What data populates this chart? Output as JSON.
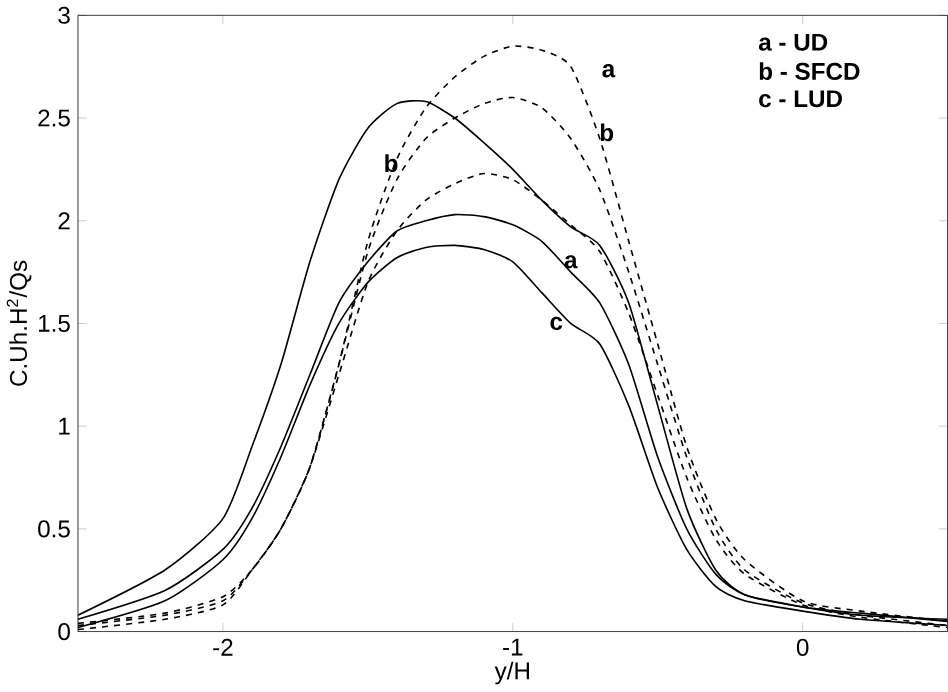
{
  "chart_data": {
    "type": "line",
    "xlabel": "y/H",
    "ylabel": "C.Uh.H$^{2}$/Qs",
    "xlim": [
      -2.5,
      0.5
    ],
    "ylim": [
      0,
      3
    ],
    "xticks": [
      -2,
      -1,
      0
    ],
    "yticks": [
      0,
      0.5,
      1,
      1.5,
      2,
      2.5,
      3
    ],
    "x": [
      -2.5,
      -2.2,
      -2.0,
      -1.9,
      -1.8,
      -1.7,
      -1.6,
      -1.5,
      -1.4,
      -1.3,
      -1.2,
      -1.1,
      -1.0,
      -0.9,
      -0.8,
      -0.7,
      -0.6,
      -0.5,
      -0.4,
      -0.3,
      -0.2,
      0.0,
      0.2,
      0.5
    ],
    "series": [
      {
        "color": "#000000",
        "line_style": "solid",
        "values": [
          0.08,
          0.3,
          0.55,
          0.9,
          1.3,
          1.8,
          2.2,
          2.45,
          2.57,
          2.58,
          2.5,
          2.38,
          2.25,
          2.1,
          1.97,
          1.88,
          1.6,
          1.1,
          0.6,
          0.3,
          0.18,
          0.12,
          0.09,
          0.05
        ]
      },
      {
        "color": "#000000",
        "line_style": "solid",
        "values": [
          0.06,
          0.2,
          0.4,
          0.6,
          0.9,
          1.25,
          1.6,
          1.8,
          1.95,
          2.0,
          2.03,
          2.02,
          1.98,
          1.9,
          1.75,
          1.6,
          1.3,
          0.85,
          0.5,
          0.28,
          0.18,
          0.12,
          0.08,
          0.06
        ]
      },
      {
        "color": "#000000",
        "line_style": "solid",
        "values": [
          0.02,
          0.15,
          0.35,
          0.55,
          0.85,
          1.2,
          1.5,
          1.7,
          1.82,
          1.87,
          1.88,
          1.86,
          1.8,
          1.65,
          1.5,
          1.4,
          1.1,
          0.7,
          0.4,
          0.22,
          0.15,
          0.1,
          0.06,
          0.03
        ]
      },
      {
        "color": "#000000",
        "line_style": "dashed",
        "values": [
          0.03,
          0.08,
          0.15,
          0.3,
          0.5,
          0.8,
          1.3,
          1.9,
          2.3,
          2.55,
          2.7,
          2.8,
          2.85,
          2.83,
          2.75,
          2.4,
          1.9,
          1.4,
          0.9,
          0.55,
          0.35,
          0.15,
          0.1,
          0.05
        ]
      },
      {
        "color": "#000000",
        "line_style": "dashed",
        "values": [
          0.04,
          0.09,
          0.17,
          0.3,
          0.5,
          0.8,
          1.3,
          1.85,
          2.2,
          2.4,
          2.5,
          2.57,
          2.6,
          2.55,
          2.4,
          2.15,
          1.75,
          1.3,
          0.85,
          0.5,
          0.3,
          0.14,
          0.08,
          0.03
        ]
      },
      {
        "color": "#000000",
        "line_style": "dashed",
        "values": [
          0.01,
          0.06,
          0.13,
          0.3,
          0.5,
          0.8,
          1.25,
          1.7,
          1.95,
          2.1,
          2.18,
          2.23,
          2.2,
          2.1,
          1.98,
          1.85,
          1.55,
          1.15,
          0.75,
          0.45,
          0.28,
          0.13,
          0.07,
          0.02
        ]
      }
    ],
    "annotations": [
      "a - UD",
      "b - SFCD",
      "c  - LUD",
      "a",
      "b",
      "b",
      {
        "text": "a",
        "x": -0.8,
        "y": 1.8
      },
      {
        "text": "c",
        "x": -0.85,
        "y": 1.5
      }
    ]
  }
}
